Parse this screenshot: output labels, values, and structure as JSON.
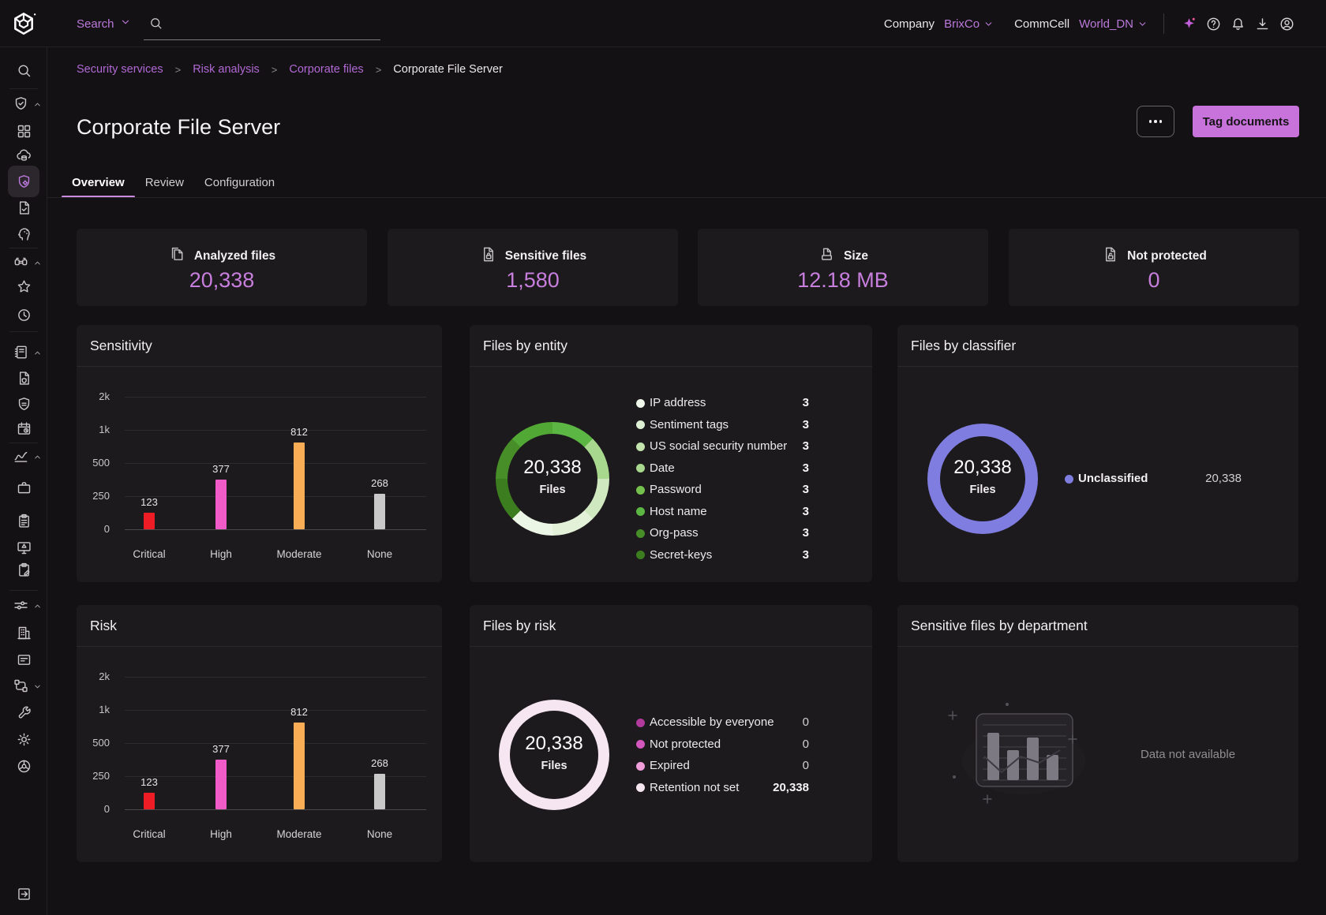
{
  "topbar": {
    "search_label": "Search",
    "company_label": "Company",
    "company_value": "BrixCo",
    "commcell_label": "CommCell",
    "commcell_value": "World_DN",
    "icons": [
      {
        "name": "ai-sparkle-icon",
        "glyph": "sparkle"
      },
      {
        "name": "help-icon",
        "glyph": "help"
      },
      {
        "name": "notifications-icon",
        "glyph": "bell"
      },
      {
        "name": "download-center-icon",
        "glyph": "download"
      },
      {
        "name": "account-icon",
        "glyph": "account"
      }
    ]
  },
  "breadcrumb": {
    "separator": ">",
    "items": [
      "Security services",
      "Risk analysis",
      "Corporate files",
      "Corporate File Server"
    ]
  },
  "page": {
    "title": "Corporate File Server",
    "tag_button_label": "Tag documents"
  },
  "tabs": {
    "items": [
      "Overview",
      "Review",
      "Configuration"
    ],
    "active_index": 0
  },
  "metrics": {
    "cards": [
      {
        "icon": "files-stack",
        "label": "Analyzed files",
        "value": "20,338"
      },
      {
        "icon": "file-lock",
        "label": "Sensitive files",
        "value": "1,580"
      },
      {
        "icon": "file-tray",
        "label": "Size",
        "value": "12.18 MB"
      },
      {
        "icon": "file-unlock",
        "label": "Not protected",
        "value": "0"
      }
    ]
  },
  "chart_data": [
    {
      "id": "sensitivity",
      "type": "bar",
      "title": "Sensitivity",
      "categories": [
        "Critical",
        "High",
        "Moderate",
        "None"
      ],
      "values": [
        123,
        377,
        812,
        268
      ],
      "value_labels": [
        "123",
        "377",
        "812",
        "268"
      ],
      "bar_colors": [
        "#ee1c25",
        "#f15bc8",
        "#f9ae56",
        "#c9c9c9"
      ],
      "ytick_labels": [
        "0",
        "250",
        "500",
        "1k",
        "2k"
      ],
      "ytick_values": [
        0,
        250,
        500,
        1000,
        2000
      ],
      "grid": true,
      "ylim": [
        0,
        2000
      ]
    },
    {
      "id": "files-by-entity",
      "type": "donut",
      "title": "Files by entity",
      "center_value": "20,338",
      "center_label": "Files",
      "ring_colors": [
        "#5cb644",
        "#a8d88e",
        "#cfe8c0",
        "#e2f1d8",
        "#ecf6e6",
        "#3c7d1f",
        "#478e28",
        "#52a835"
      ],
      "legend": [
        {
          "label": "IP address",
          "value": 3,
          "display": "3",
          "dot": "#eef7e9",
          "value_bold": true
        },
        {
          "label": "Sentiment tags",
          "value": 3,
          "display": "3",
          "dot": "#def0d4",
          "value_bold": true
        },
        {
          "label": "US social security number",
          "value": 3,
          "display": "3",
          "dot": "#c4e4ae",
          "value_bold": true
        },
        {
          "label": "Date",
          "value": 3,
          "display": "3",
          "dot": "#a8d88e",
          "value_bold": true
        },
        {
          "label": "Password",
          "value": 3,
          "display": "3",
          "dot": "#74c24d",
          "value_bold": true
        },
        {
          "label": "Host name",
          "value": 3,
          "display": "3",
          "dot": "#5cb644",
          "value_bold": true
        },
        {
          "label": "Org-pass",
          "value": 3,
          "display": "3",
          "dot": "#478e28",
          "value_bold": true
        },
        {
          "label": "Secret-keys",
          "value": 3,
          "display": "3",
          "dot": "#3c7d1f",
          "value_bold": true
        }
      ]
    },
    {
      "id": "files-by-classifier",
      "type": "donut",
      "title": "Files by classifier",
      "center_value": "20,338",
      "center_label": "Files",
      "ring_colors": [
        "#7f7ee0"
      ],
      "legend": [
        {
          "label": "Unclassified",
          "value": 20338,
          "display": "20,338",
          "dot": "#7f7ee0",
          "label_bold": true
        }
      ]
    },
    {
      "id": "risk",
      "type": "bar",
      "title": "Risk",
      "categories": [
        "Critical",
        "High",
        "Moderate",
        "None"
      ],
      "values": [
        123,
        377,
        812,
        268
      ],
      "value_labels": [
        "123",
        "377",
        "812",
        "268"
      ],
      "bar_colors": [
        "#ee1c25",
        "#f15bc8",
        "#f9ae56",
        "#c9c9c9"
      ],
      "ytick_labels": [
        "0",
        "250",
        "500",
        "1k",
        "2k"
      ],
      "ytick_values": [
        0,
        250,
        500,
        1000,
        2000
      ],
      "grid": true,
      "ylim": [
        0,
        2000
      ]
    },
    {
      "id": "files-by-risk",
      "type": "donut",
      "title": "Files by risk",
      "center_value": "20,338",
      "center_label": "Files",
      "ring_colors": [
        "#f6e6f1"
      ],
      "legend": [
        {
          "label": "Accessible by everyone",
          "value": 0,
          "display": "0",
          "dot": "#b13a9c"
        },
        {
          "label": "Not protected",
          "value": 0,
          "display": "0",
          "dot": "#d457bd"
        },
        {
          "label": "Expired",
          "value": 0,
          "display": "0",
          "dot": "#ef9ed9"
        },
        {
          "label": "Retention not set",
          "value": 20338,
          "display": "20,338",
          "dot": "#f6e6f1",
          "value_bold": true
        }
      ]
    },
    {
      "id": "sensitive-files-by-department",
      "type": "empty",
      "title": "Sensitive files by department",
      "message": "Data not available"
    }
  ],
  "sidebar": {
    "items": [
      {
        "icon": "search-icon",
        "glyph": "search",
        "y": 89
      },
      {
        "divider": true,
        "y": 112
      },
      {
        "icon": "security-shield-icon",
        "glyph": "shield-check",
        "y": 131,
        "chevron": "up"
      },
      {
        "icon": "apps-grid-icon",
        "glyph": "grid",
        "y": 166
      },
      {
        "icon": "cloud-data-icon",
        "glyph": "cloud-database",
        "y": 197
      },
      {
        "icon": "risk-analysis-icon",
        "glyph": "shield-gear",
        "y": 230,
        "active": true
      },
      {
        "icon": "compliance-doc-icon",
        "glyph": "document-check",
        "y": 263
      },
      {
        "icon": "entity-ai-icon",
        "glyph": "head-network",
        "y": 296
      },
      {
        "divider": true,
        "y": 314
      },
      {
        "icon": "discover-icon",
        "glyph": "binoculars",
        "y": 332,
        "chevron": "up"
      },
      {
        "icon": "favorites-icon",
        "glyph": "star",
        "y": 363
      },
      {
        "icon": "history-icon",
        "glyph": "history",
        "y": 399
      },
      {
        "divider": true,
        "y": 420
      },
      {
        "icon": "reports-icon",
        "glyph": "notebook",
        "y": 446,
        "chevron": "up"
      },
      {
        "icon": "secure-doc-icon",
        "glyph": "document-shield",
        "y": 479
      },
      {
        "icon": "policies-icon",
        "glyph": "shield-lines",
        "y": 512
      },
      {
        "icon": "schedules-icon",
        "glyph": "calendar-clock",
        "y": 543
      },
      {
        "divider": true,
        "y": 561
      },
      {
        "icon": "monitoring-icon",
        "glyph": "line-chart",
        "y": 578,
        "chevron": "up"
      },
      {
        "icon": "jobs-icon",
        "glyph": "briefcase",
        "y": 618
      },
      {
        "icon": "logs-icon",
        "glyph": "clipboard",
        "y": 660
      },
      {
        "icon": "alerts-icon",
        "glyph": "monitor-alert",
        "y": 694
      },
      {
        "icon": "audit-icon",
        "glyph": "clipboard-edit",
        "y": 722
      },
      {
        "divider": true,
        "y": 748
      },
      {
        "icon": "configuration-icon",
        "glyph": "sliders",
        "y": 767,
        "chevron": "up"
      },
      {
        "icon": "organization-icon",
        "glyph": "building",
        "y": 802
      },
      {
        "icon": "plans-icon",
        "glyph": "window",
        "y": 836
      },
      {
        "icon": "workflows-icon",
        "glyph": "workflow",
        "y": 869,
        "chevron": "down"
      },
      {
        "icon": "tools-icon",
        "glyph": "wrench",
        "y": 903
      },
      {
        "icon": "settings-icon",
        "glyph": "gear",
        "y": 937
      },
      {
        "icon": "integrations-icon",
        "glyph": "webhook",
        "y": 971
      },
      {
        "icon": "collapse-sidebar-icon",
        "glyph": "exit",
        "y": 1133
      }
    ]
  },
  "colors": {
    "page_bg": "#141114",
    "panel_bg": "#1d1a1d",
    "accent_purple": "#bb79da",
    "value_purple": "#c77edd",
    "tag_button": "#c873dc",
    "tab_underline": "#c98ae0",
    "bar_critical": "#ee1c25",
    "bar_high": "#f15bc8",
    "bar_moderate": "#f9ae56",
    "bar_none": "#c9c9c9",
    "classifier_ring": "#7f7ee0",
    "risk_ring": "#f6e6f1"
  }
}
